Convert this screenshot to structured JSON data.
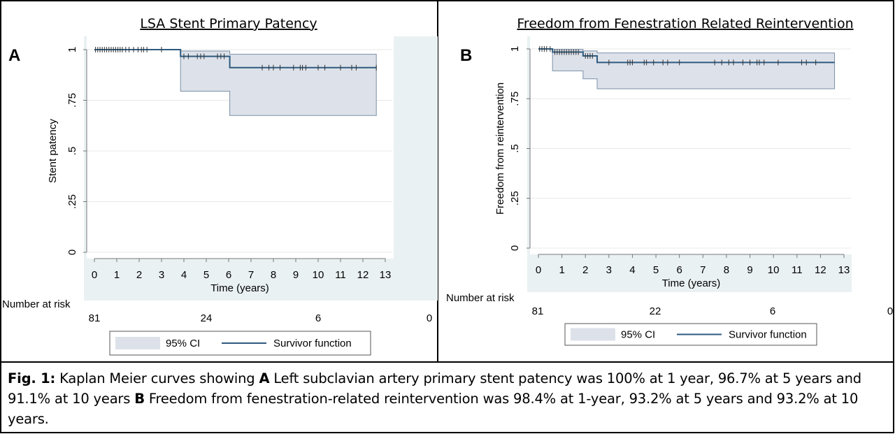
{
  "colors": {
    "plot_bg": "#eaf1f3",
    "ci_fill": "#dde2ea",
    "ci_stroke": "#7b8fa6",
    "survivor_line": "#2e5a7e",
    "grid": "#e8e8e8"
  },
  "chart_data": [
    {
      "type": "line",
      "panel_label": "A",
      "title": "LSA Stent Primary Patency",
      "xlabel": "Time (years)",
      "ylabel": "Stent patency",
      "xlim": [
        0,
        13
      ],
      "ylim": [
        0,
        1
      ],
      "x_ticks": [
        "0",
        "1",
        "2",
        "3",
        "4",
        "5",
        "6",
        "7",
        "8",
        "9",
        "10",
        "11",
        "12",
        "13"
      ],
      "y_ticks": [
        "0",
        ".25",
        ".5",
        ".75",
        "1"
      ],
      "grid": true,
      "series": [
        {
          "name": "Survivor function",
          "x": [
            0,
            3.85,
            6.05,
            12.6
          ],
          "y": [
            1.0,
            0.967,
            0.911,
            0.911
          ]
        },
        {
          "name": "95% CI",
          "x": [
            0,
            3.85,
            6.05,
            12.6
          ],
          "upper": [
            1.0,
            0.993,
            0.977,
            0.977
          ],
          "lower": [
            1.0,
            0.795,
            0.675,
            0.675
          ]
        }
      ],
      "censor_x": [
        0.05,
        0.15,
        0.25,
        0.35,
        0.45,
        0.55,
        0.65,
        0.75,
        0.85,
        0.95,
        1.05,
        1.15,
        1.25,
        1.4,
        1.55,
        1.75,
        1.95,
        2.1,
        2.2,
        2.35,
        3.0,
        4.0,
        4.2,
        4.6,
        4.75,
        4.9,
        5.5,
        5.65,
        5.8,
        7.5,
        7.8,
        8.0,
        8.3,
        8.9,
        9.2,
        9.3,
        9.45,
        10.0,
        10.3,
        11.0,
        11.5,
        11.7,
        12.6
      ],
      "risk_title": "Number at risk",
      "risk_x": [
        0,
        5,
        10,
        15
      ],
      "risk_counts": [
        "81",
        "24",
        "6",
        "0"
      ],
      "legend": {
        "position": "bottom",
        "entries": [
          "95% CI",
          "Survivor function"
        ]
      }
    },
    {
      "type": "line",
      "panel_label": "B",
      "title": "Freedom from Fenestration Related Reintervention",
      "xlabel": "Time (years)",
      "ylabel": "Freedom from reintervention",
      "xlim": [
        0,
        13
      ],
      "ylim": [
        0,
        1
      ],
      "x_ticks": [
        "0",
        "1",
        "2",
        "3",
        "4",
        "5",
        "6",
        "7",
        "8",
        "9",
        "10",
        "11",
        "12",
        "13"
      ],
      "y_ticks": [
        "0",
        ".25",
        ".5",
        ".75",
        "1"
      ],
      "grid": true,
      "series": [
        {
          "name": "Survivor function",
          "x": [
            0,
            0.6,
            1.9,
            2.5,
            12.6
          ],
          "y": [
            1.0,
            0.984,
            0.965,
            0.932,
            0.932
          ]
        },
        {
          "name": "95% CI",
          "x": [
            0,
            0.6,
            1.9,
            2.5,
            12.6
          ],
          "upper": [
            1.0,
            0.998,
            0.99,
            0.98,
            0.98
          ],
          "lower": [
            1.0,
            0.89,
            0.85,
            0.8,
            0.8
          ]
        }
      ],
      "censor_x": [
        0.05,
        0.15,
        0.25,
        0.35,
        0.5,
        0.7,
        0.8,
        0.9,
        1.0,
        1.1,
        1.2,
        1.3,
        1.4,
        1.5,
        1.6,
        1.7,
        2.0,
        2.1,
        2.2,
        2.3,
        3.0,
        3.8,
        3.9,
        4.0,
        4.5,
        4.6,
        4.9,
        5.3,
        5.5,
        6.0,
        7.5,
        7.8,
        8.1,
        8.3,
        8.7,
        9.0,
        9.3,
        9.4,
        9.6,
        10.2,
        11.2,
        11.4,
        11.8
      ],
      "risk_title": "Number at risk",
      "risk_x": [
        0,
        5,
        10,
        15
      ],
      "risk_counts": [
        "81",
        "22",
        "6",
        "0"
      ],
      "legend": {
        "position": "bottom",
        "entries": [
          "95% CI",
          "Survivor function"
        ]
      }
    }
  ],
  "caption": {
    "fig_label": "Fig. 1:",
    "intro": " Kaplan Meier curves showing ",
    "label_a": "A",
    "text_a": " Left subclavian artery primary stent patency was 100% at 1 year, 96.7% at 5 years and 91.1% at 10 years ",
    "label_b": "B",
    "text_b": " Freedom from fenestration-related reintervention was 98.4% at 1-year, 93.2% at 5 years and 93.2% at 10 years."
  }
}
